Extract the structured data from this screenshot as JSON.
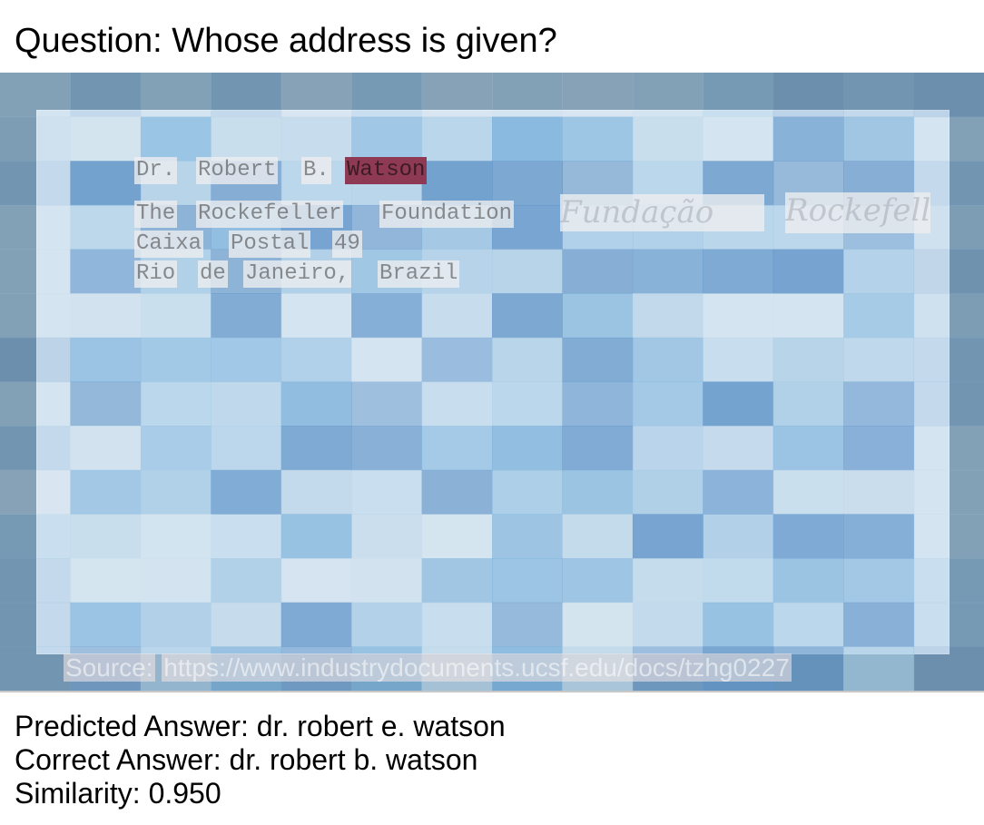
{
  "question": "Question: Whose address is given?",
  "document": {
    "lines": [
      [
        "Dr.",
        "Robert",
        "B.",
        "Watson"
      ],
      [
        "The",
        "Rockefeller",
        "Foundation"
      ],
      [
        "Caixa",
        "Postal",
        "49"
      ],
      [
        "Rio",
        "de",
        "Janeiro,",
        "Brazil"
      ]
    ],
    "handwriting": [
      "Fundação",
      "Rockefeller"
    ],
    "highlight_color": "#8e3a55",
    "source_label": "Source:",
    "source_url": "https://www.industrydocuments.ucsf.edu/docs/tzhg0227"
  },
  "predicted": "Predicted Answer: dr. robert e. watson",
  "correct": "Correct Answer: dr. robert b. watson",
  "similarity": "Similarity: 0.950"
}
